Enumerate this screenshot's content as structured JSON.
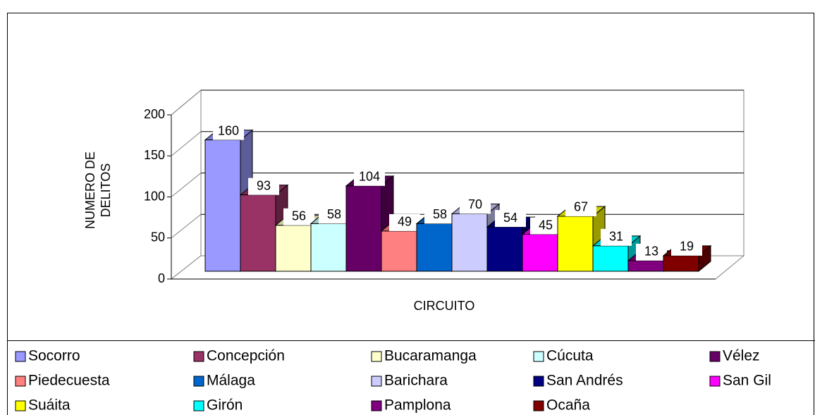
{
  "chart_data": {
    "type": "bar3d",
    "y_label_lines": [
      "NUMERO DE",
      "DELITOS"
    ],
    "x_label": "CIRCUITO",
    "ylim": [
      0,
      200
    ],
    "yticks": [
      0,
      50,
      100,
      150,
      200
    ],
    "grid": true,
    "series": [
      {
        "name": "Socorro",
        "color": "#9999ff",
        "values": [
          160
        ]
      },
      {
        "name": "Concepción",
        "color": "#993366",
        "values": [
          93
        ]
      },
      {
        "name": "Bucaramanga",
        "color": "#ffffcc",
        "values": [
          56
        ]
      },
      {
        "name": "Cúcuta",
        "color": "#ccffff",
        "values": [
          58
        ]
      },
      {
        "name": "Vélez",
        "color": "#660066",
        "values": [
          104
        ]
      },
      {
        "name": "Piedecuesta",
        "color": "#ff8080",
        "values": [
          49
        ]
      },
      {
        "name": "Málaga",
        "color": "#0066cc",
        "values": [
          58
        ]
      },
      {
        "name": "Barichara",
        "color": "#ccccff",
        "values": [
          70
        ]
      },
      {
        "name": "San Andrés",
        "color": "#000080",
        "values": [
          54
        ]
      },
      {
        "name": "San Gil",
        "color": "#ff00ff",
        "values": [
          45
        ]
      },
      {
        "name": "Suáita",
        "color": "#ffff00",
        "values": [
          67
        ]
      },
      {
        "name": "Girón",
        "color": "#00ffff",
        "values": [
          31
        ]
      },
      {
        "name": "Pamplona",
        "color": "#800080",
        "values": [
          13
        ]
      },
      {
        "name": "Ocaña",
        "color": "#800000",
        "values": [
          19
        ]
      }
    ]
  }
}
